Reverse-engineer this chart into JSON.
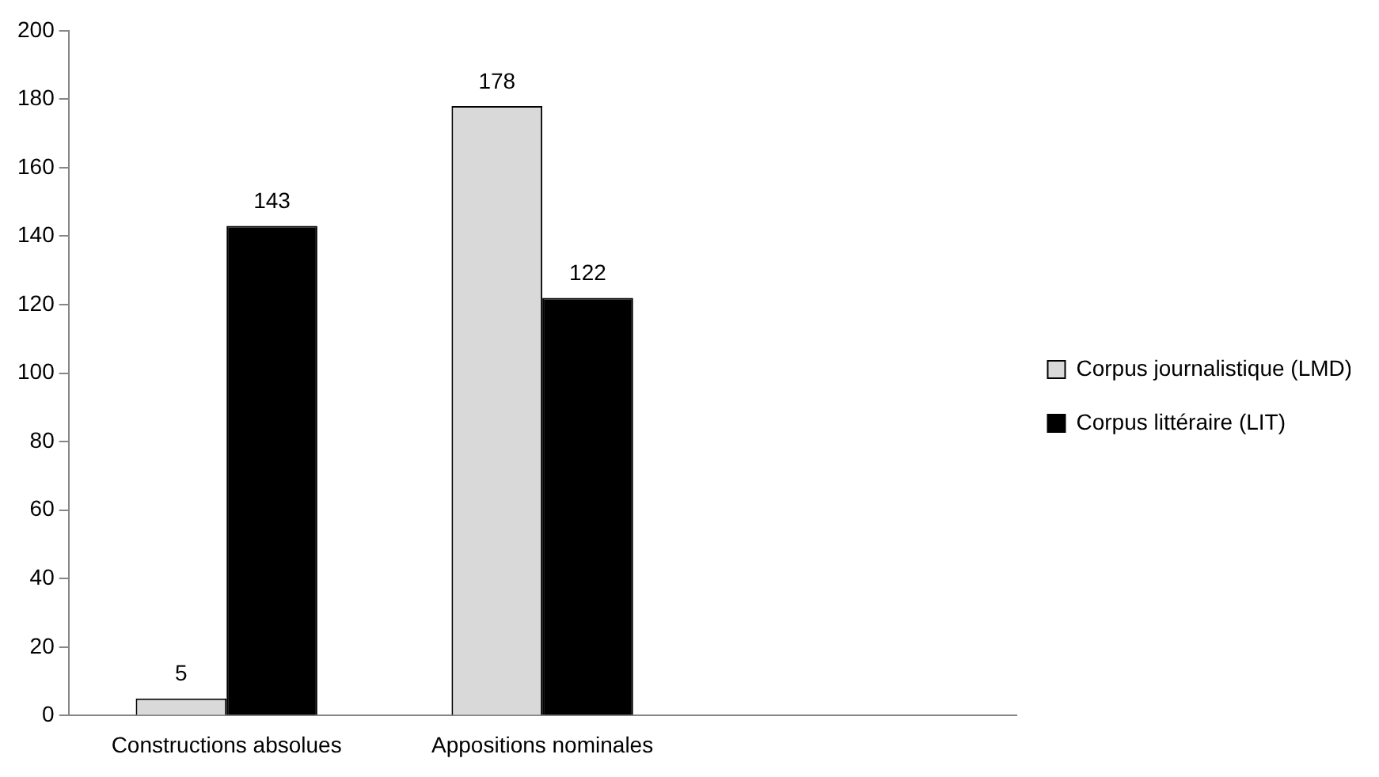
{
  "chart_data": {
    "type": "bar",
    "categories": [
      "Constructions absolues",
      "Appositions nominales",
      null
    ],
    "series": [
      {
        "name": "Corpus journalistique (LMD)",
        "color": "#d9d9d9",
        "values": [
          5,
          178,
          null
        ]
      },
      {
        "name": "Corpus littéraire (LIT)",
        "color": "#000000",
        "values": [
          143,
          122,
          null
        ]
      }
    ],
    "ylim": [
      0,
      200
    ],
    "yticks": [
      0,
      20,
      40,
      60,
      80,
      100,
      120,
      140,
      160,
      180,
      200
    ],
    "grid": false,
    "legend": "right",
    "data_labels": true
  }
}
